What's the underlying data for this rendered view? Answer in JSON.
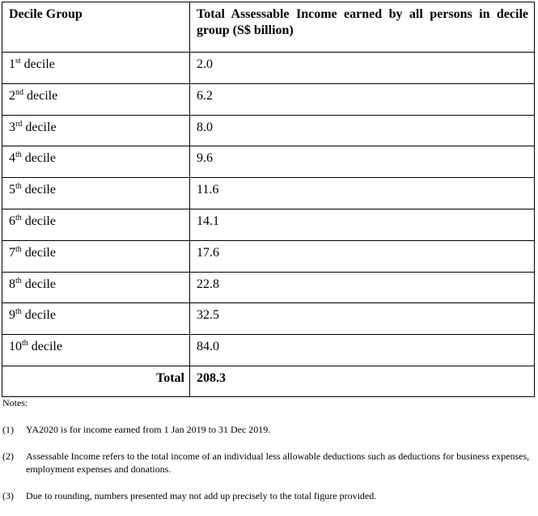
{
  "table": {
    "header": {
      "col1": "Decile Group",
      "col2": "Total Assessable Income earned by all persons in decile group (S$ billion)"
    },
    "rows": [
      {
        "num": "1",
        "sup": "st",
        "label": "decile",
        "value": "2.0"
      },
      {
        "num": "2",
        "sup": "nd",
        "label": "decile",
        "value": "6.2"
      },
      {
        "num": "3",
        "sup": "rd",
        "label": "decile",
        "value": "8.0"
      },
      {
        "num": "4",
        "sup": "th",
        "label": "decile",
        "value": "9.6"
      },
      {
        "num": "5",
        "sup": "th",
        "label": "decile",
        "value": "11.6"
      },
      {
        "num": "6",
        "sup": "th",
        "label": "decile",
        "value": "14.1"
      },
      {
        "num": "7",
        "sup": "th",
        "label": "decile",
        "value": "17.6"
      },
      {
        "num": "8",
        "sup": "th",
        "label": "decile",
        "value": "22.8"
      },
      {
        "num": "9",
        "sup": "th",
        "label": "decile",
        "value": "32.5"
      },
      {
        "num": "10",
        "sup": "th",
        "label": "decile",
        "value": "84.0"
      }
    ],
    "total": {
      "label": "Total",
      "value": "208.3"
    }
  },
  "notes": {
    "title": "Notes:",
    "items": [
      {
        "num": "(1)",
        "text": "YA2020 is for income earned from 1 Jan 2019 to 31 Dec 2019."
      },
      {
        "num": "(2)",
        "text": "Assessable Income refers to the total income of an individual less allowable deductions such as deductions for business expenses, employment expenses and donations."
      },
      {
        "num": "(3)",
        "text": "Due to rounding, numbers presented may not add up precisely to the total figure provided."
      }
    ]
  }
}
